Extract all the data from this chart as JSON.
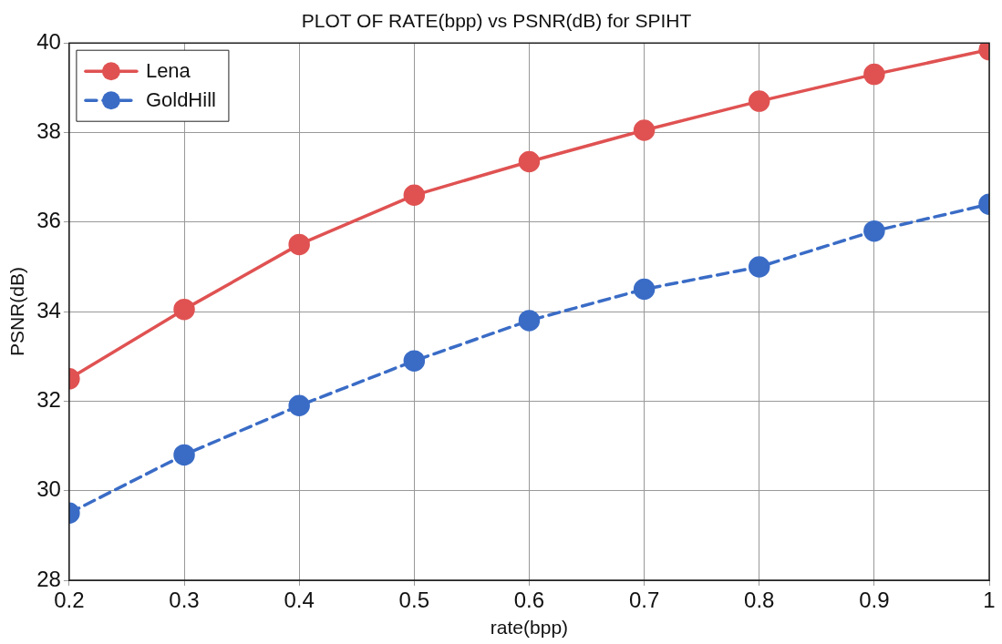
{
  "chart_data": {
    "type": "line",
    "title": "PLOT OF RATE(bpp) vs PSNR(dB) for SPIHT",
    "xlabel": "rate(bpp)",
    "ylabel": "PSNR(dB)",
    "x": [
      0.2,
      0.3,
      0.4,
      0.5,
      0.6,
      0.7,
      0.8,
      0.9,
      1
    ],
    "series": [
      {
        "name": "Lena",
        "color": "#e05252",
        "line_style": "solid",
        "values": [
          32.5,
          34.05,
          35.5,
          36.6,
          37.35,
          38.05,
          38.7,
          39.3,
          39.85
        ]
      },
      {
        "name": "GoldHill",
        "color": "#3a6cc6",
        "line_style": "dashed",
        "values": [
          29.5,
          30.8,
          31.9,
          32.9,
          33.8,
          34.5,
          35.0,
          35.8,
          36.4
        ]
      }
    ],
    "xlim": [
      0.2,
      1
    ],
    "xticks": [
      0.2,
      0.3,
      0.4,
      0.5,
      0.6,
      0.7,
      0.8,
      0.9,
      1
    ],
    "ylim": [
      28,
      40
    ],
    "yticks": [
      28,
      30,
      32,
      34,
      36,
      38,
      40
    ],
    "grid": true,
    "legend": "top left",
    "marker": "circle"
  }
}
